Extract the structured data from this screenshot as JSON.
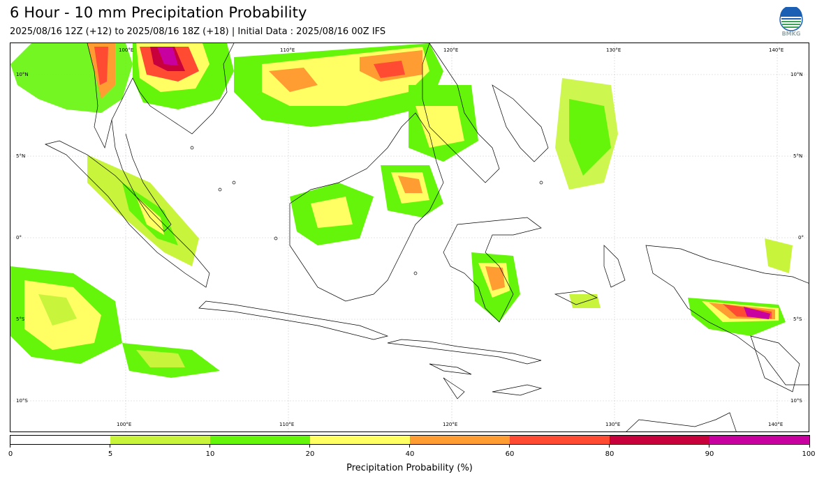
{
  "header": {
    "title": "6 Hour - 10 mm Precipitation Probability",
    "subtitle": "2025/08/16 12Z (+12) to 2025/08/16 18Z (+18) | Initial Data : 2025/08/16 00Z IFS"
  },
  "logo": {
    "text": "BMKG",
    "icon": "agency-logo-icon"
  },
  "map": {
    "lon_labels_top": [
      "100°E",
      "110°E",
      "120°E",
      "130°E",
      "140°E"
    ],
    "lon_labels_bottom": [
      "100°E",
      "110°E",
      "120°E",
      "130°E",
      "140°E"
    ],
    "lat_labels_left": [
      "10°N",
      "5°N",
      "0°",
      "5°S",
      "10°S"
    ],
    "lat_labels_right": [
      "10°N",
      "5°N",
      "0°",
      "5°S",
      "10°S"
    ]
  },
  "colorbar": {
    "label": "Precipitation Probability (%)",
    "ticks": [
      "0",
      "5",
      "10",
      "20",
      "40",
      "60",
      "80",
      "90",
      "100"
    ],
    "colors": [
      "#ffffff",
      "#c8f53c",
      "#64f50a",
      "#ffff64",
      "#ff9c32",
      "#ff4b32",
      "#c8003c",
      "#c800a0"
    ]
  }
}
